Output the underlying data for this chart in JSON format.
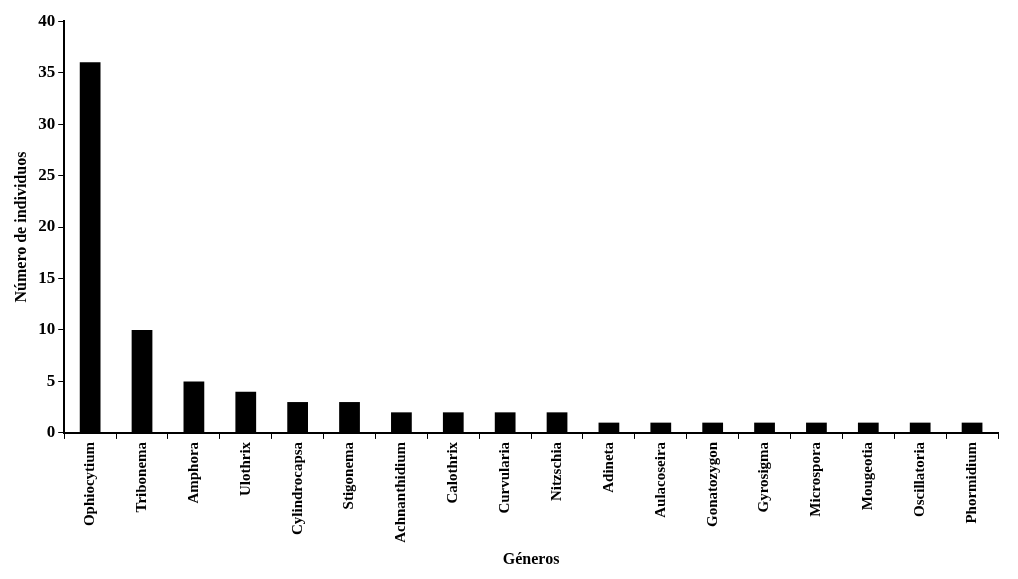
{
  "chart_data": {
    "type": "bar",
    "xlabel": "Géneros",
    "ylabel": "Número de individuos",
    "categories": [
      "Ophiocytium",
      "Tribonema",
      "Amphora",
      "Ulothrix",
      "Cylindrocapsa",
      "Stigonema",
      "Achnanthidium",
      "Calothrix",
      "Curvularia",
      "Nitzschia",
      "Adineta",
      "Aulacoseira",
      "Gonatozygon",
      "Gyrosigma",
      "Microspora",
      "Mougeotia",
      "Oscillatoria",
      "Phormidium"
    ],
    "values": [
      36,
      10,
      5,
      4,
      3,
      3,
      2,
      2,
      2,
      2,
      1,
      1,
      1,
      1,
      1,
      1,
      1,
      1
    ],
    "color": "#000000",
    "ylim": [
      0,
      40
    ],
    "yticks": [
      0,
      5,
      10,
      15,
      20,
      25,
      30,
      35,
      40
    ],
    "legend": false
  }
}
